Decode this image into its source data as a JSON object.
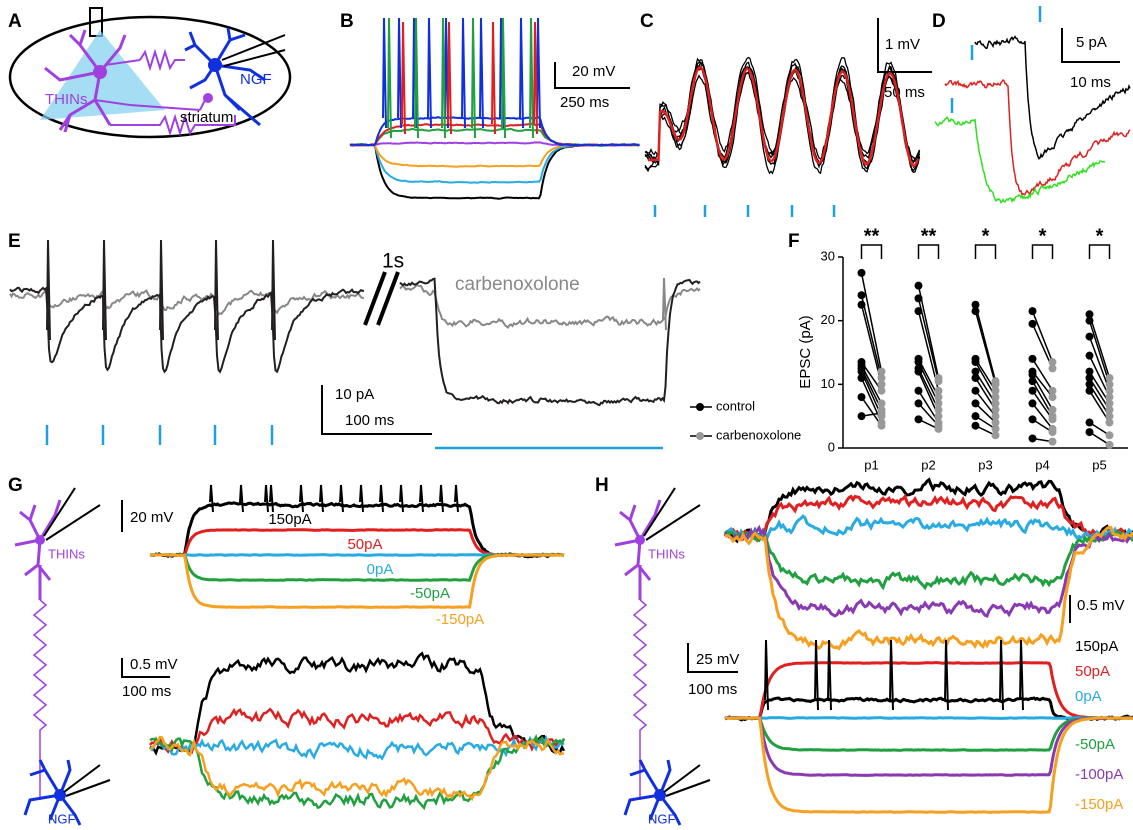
{
  "panels": {
    "a": {
      "letter": "A",
      "thins": "THINs",
      "ngf": "NGF",
      "region": "striatum"
    },
    "b": {
      "letter": "B",
      "v_scale": "20 mV",
      "t_scale": "250 ms"
    },
    "c": {
      "letter": "C",
      "v_scale": "1 mV",
      "t_scale": "50 ms"
    },
    "d": {
      "letter": "D",
      "i_scale": "5 pA",
      "t_scale": "10 ms"
    },
    "e": {
      "letter": "E",
      "break": "1s",
      "drug": "carbenoxolone",
      "i_scale": "10 pA",
      "t_scale": "100 ms"
    },
    "f": {
      "letter": "F"
    },
    "g": {
      "letter": "G",
      "v_scale_top": "20 mV",
      "currents": [
        "150pA",
        "50pA",
        "0pA",
        "-50pA",
        "-150pA"
      ],
      "thins": "THINs",
      "ngf": "NGF",
      "v_scale_bottom": "0.5 mV",
      "t_scale": "100 ms"
    },
    "h": {
      "letter": "H",
      "v_scale_top": "0.5 mV",
      "v_scale_bottom": "25 mV",
      "t_scale": "100 ms",
      "currents": [
        "150pA",
        "50pA",
        "0pA",
        "-50pA",
        "-100pA",
        "-150pA"
      ],
      "thins": "THINs",
      "ngf": "NGF"
    }
  },
  "chart_data": {
    "type": "paired-dot",
    "y_label": "EPSC (pA)",
    "categories": [
      "p1",
      "p2",
      "p3",
      "p4",
      "p5"
    ],
    "significance": [
      "**",
      "**",
      "*",
      "*",
      "*"
    ],
    "series": [
      {
        "name": "control",
        "color": "#000000",
        "values": [
          [
            27.5,
            24,
            22.5,
            13.5,
            13,
            12.5,
            12,
            11,
            8,
            5
          ],
          [
            25.5,
            23.5,
            21.5,
            14,
            13.5,
            12.5,
            12,
            9,
            7,
            4.5
          ],
          [
            22.5,
            21.5,
            14,
            13.5,
            12,
            11,
            9,
            7,
            5,
            3.5
          ],
          [
            21.5,
            19.5,
            14,
            12,
            11.5,
            10.5,
            9,
            7,
            4.5,
            1.5
          ],
          [
            21,
            20,
            17.5,
            14.5,
            12,
            11,
            10,
            9,
            4,
            2.5
          ]
        ]
      },
      {
        "name": "carbenoxolone",
        "color": "#999999",
        "values": [
          [
            12,
            11,
            10,
            9,
            7,
            6,
            5,
            4,
            3.5,
            5.5
          ],
          [
            11,
            10.5,
            9,
            8,
            7,
            6,
            5,
            4,
            3.5,
            3
          ],
          [
            10.5,
            10,
            9,
            8,
            7,
            6,
            5,
            4,
            3,
            2
          ],
          [
            13.5,
            12.5,
            9,
            8,
            6,
            5,
            4.5,
            3,
            2.5,
            1
          ],
          [
            11,
            10,
            9,
            8,
            7,
            6,
            5,
            4,
            2,
            0.5
          ]
        ]
      }
    ],
    "ylim": [
      0,
      30
    ],
    "yticks": [
      0,
      10,
      20,
      30
    ]
  }
}
